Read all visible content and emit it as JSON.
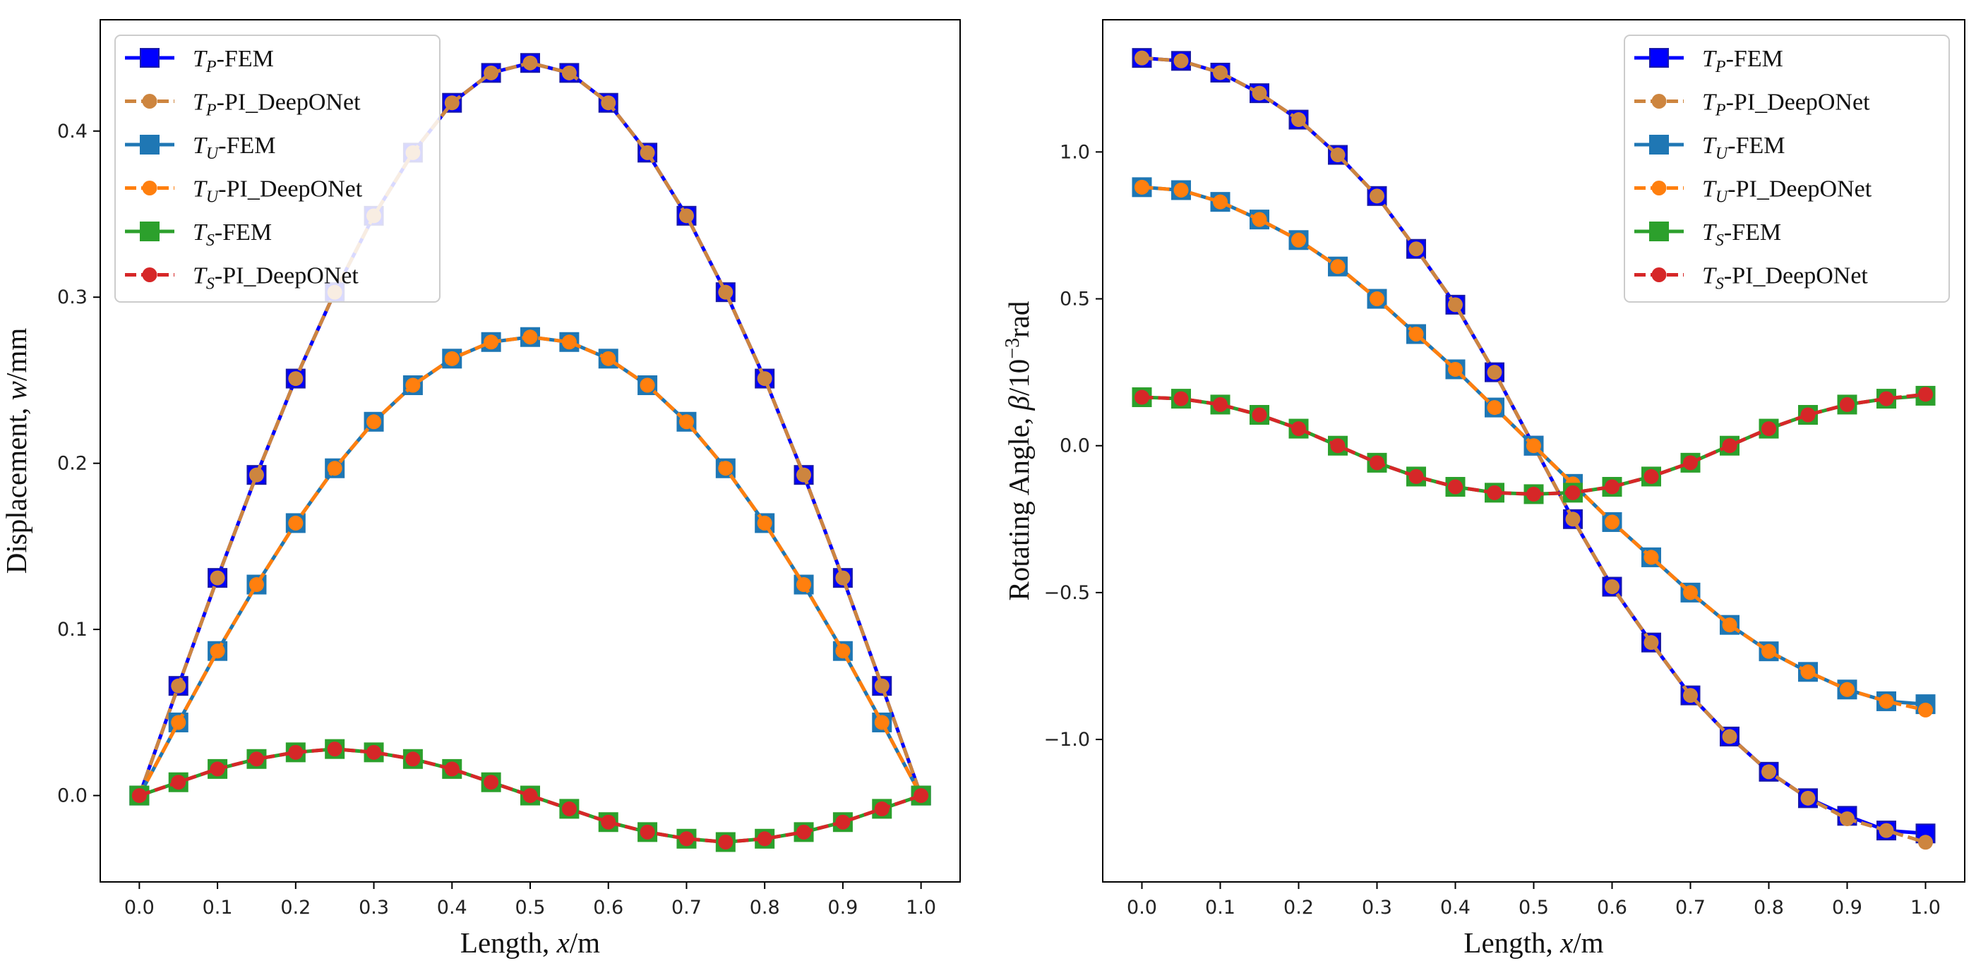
{
  "chart_data": [
    {
      "type": "line",
      "xlabel": {
        "prefix": "Length, ",
        "var": "x",
        "suffix": "/m"
      },
      "ylabel": {
        "prefix": "Displacement, ",
        "var": "w",
        "suffix": "/mm"
      },
      "xlim": [
        -0.05,
        1.05
      ],
      "ylim": [
        -0.052,
        0.467
      ],
      "x_ticks": [
        0.0,
        0.1,
        0.2,
        0.3,
        0.4,
        0.5,
        0.6,
        0.7,
        0.8,
        0.9,
        1.0
      ],
      "x_tick_labels": [
        "0.0",
        "0.1",
        "0.2",
        "0.3",
        "0.4",
        "0.5",
        "0.6",
        "0.7",
        "0.8",
        "0.9",
        "1.0"
      ],
      "y_ticks": [
        0.0,
        0.1,
        0.2,
        0.3,
        0.4
      ],
      "y_tick_labels": [
        "0.0",
        "0.1",
        "0.2",
        "0.3",
        "0.4"
      ],
      "legend_position": "upper-left",
      "x": [
        0.0,
        0.05,
        0.1,
        0.15,
        0.2,
        0.25,
        0.3,
        0.35,
        0.4,
        0.45,
        0.5,
        0.55,
        0.6,
        0.65,
        0.7,
        0.75,
        0.8,
        0.85,
        0.9,
        0.95,
        1.0
      ],
      "series": [
        {
          "name": "T_P-FEM",
          "sub": "P",
          "label_suffix": "-FEM",
          "style": "fem",
          "color": "#0000ff",
          "marker_edge": "#1a1aa8",
          "values": [
            0.0,
            0.066,
            0.131,
            0.193,
            0.251,
            0.303,
            0.349,
            0.387,
            0.417,
            0.435,
            0.441,
            0.435,
            0.417,
            0.387,
            0.349,
            0.303,
            0.251,
            0.193,
            0.131,
            0.066,
            0.0
          ]
        },
        {
          "name": "T_P-PI_DeepONet",
          "sub": "P",
          "label_suffix": "-PI_DeepONet",
          "style": "pinn",
          "color": "#cd853f",
          "values": [
            0.0,
            0.066,
            0.131,
            0.193,
            0.251,
            0.303,
            0.349,
            0.387,
            0.417,
            0.435,
            0.441,
            0.435,
            0.417,
            0.387,
            0.349,
            0.303,
            0.251,
            0.193,
            0.131,
            0.066,
            0.0
          ]
        },
        {
          "name": "T_U-FEM",
          "sub": "U",
          "label_suffix": "-FEM",
          "style": "fem",
          "color": "#1f77b4",
          "marker_edge": "#1f77b4",
          "values": [
            0.0,
            0.044,
            0.087,
            0.127,
            0.164,
            0.197,
            0.225,
            0.247,
            0.263,
            0.273,
            0.276,
            0.273,
            0.263,
            0.247,
            0.225,
            0.197,
            0.164,
            0.127,
            0.087,
            0.044,
            0.0
          ]
        },
        {
          "name": "T_U-PI_DeepONet",
          "sub": "U",
          "label_suffix": "-PI_DeepONet",
          "style": "pinn",
          "color": "#ff7f0e",
          "values": [
            0.0,
            0.044,
            0.087,
            0.127,
            0.164,
            0.197,
            0.225,
            0.247,
            0.263,
            0.273,
            0.276,
            0.273,
            0.263,
            0.247,
            0.225,
            0.197,
            0.164,
            0.127,
            0.087,
            0.044,
            0.0
          ]
        },
        {
          "name": "T_S-FEM",
          "sub": "S",
          "label_suffix": "-FEM",
          "style": "fem",
          "color": "#2ca02c",
          "marker_edge": "#2ca02c",
          "values": [
            0.0,
            0.008,
            0.016,
            0.022,
            0.026,
            0.028,
            0.026,
            0.022,
            0.016,
            0.008,
            0.0,
            -0.008,
            -0.016,
            -0.022,
            -0.026,
            -0.028,
            -0.026,
            -0.022,
            -0.016,
            -0.008,
            0.0
          ]
        },
        {
          "name": "T_S-PI_DeepONet",
          "sub": "S",
          "label_suffix": "-PI_DeepONet",
          "style": "pinn",
          "color": "#d62728",
          "values": [
            0.0,
            0.008,
            0.016,
            0.022,
            0.026,
            0.028,
            0.026,
            0.022,
            0.016,
            0.008,
            0.0,
            -0.008,
            -0.016,
            -0.022,
            -0.026,
            -0.028,
            -0.026,
            -0.022,
            -0.016,
            -0.008,
            0.0
          ]
        }
      ]
    },
    {
      "type": "line",
      "xlabel": {
        "prefix": "Length, ",
        "var": "x",
        "suffix": "/m"
      },
      "ylabel": {
        "prefix": "Rotating Angle, ",
        "var": "β",
        "suffix": "/10",
        "sup": "−3",
        "tail": "rad"
      },
      "xlim": [
        -0.05,
        1.05
      ],
      "ylim": [
        -1.485,
        1.45
      ],
      "x_ticks": [
        0.0,
        0.1,
        0.2,
        0.3,
        0.4,
        0.5,
        0.6,
        0.7,
        0.8,
        0.9,
        1.0
      ],
      "x_tick_labels": [
        "0.0",
        "0.1",
        "0.2",
        "0.3",
        "0.4",
        "0.5",
        "0.6",
        "0.7",
        "0.8",
        "0.9",
        "1.0"
      ],
      "y_ticks": [
        -1.0,
        -0.5,
        0.0,
        0.5,
        1.0
      ],
      "y_tick_labels": [
        "−1.0",
        "−0.5",
        "0.0",
        "0.5",
        "1.0"
      ],
      "legend_position": "upper-right",
      "x": [
        0.0,
        0.05,
        0.1,
        0.15,
        0.2,
        0.25,
        0.3,
        0.35,
        0.4,
        0.45,
        0.5,
        0.55,
        0.6,
        0.65,
        0.7,
        0.75,
        0.8,
        0.85,
        0.9,
        0.95,
        1.0
      ],
      "series": [
        {
          "name": "T_P-FEM",
          "sub": "P",
          "label_suffix": "-FEM",
          "style": "fem",
          "color": "#0000ff",
          "marker_edge": "#1a1aa8",
          "values": [
            1.32,
            1.31,
            1.27,
            1.2,
            1.11,
            0.99,
            0.85,
            0.67,
            0.48,
            0.25,
            0.0,
            -0.25,
            -0.48,
            -0.67,
            -0.85,
            -0.99,
            -1.11,
            -1.2,
            -1.26,
            -1.31,
            -1.32
          ]
        },
        {
          "name": "T_P-PI_DeepONet",
          "sub": "P",
          "label_suffix": "-PI_DeepONet",
          "style": "pinn",
          "color": "#cd853f",
          "values": [
            1.32,
            1.31,
            1.27,
            1.2,
            1.11,
            0.99,
            0.85,
            0.67,
            0.48,
            0.25,
            0.0,
            -0.25,
            -0.48,
            -0.67,
            -0.85,
            -0.99,
            -1.11,
            -1.2,
            -1.27,
            -1.31,
            -1.35
          ]
        },
        {
          "name": "T_U-FEM",
          "sub": "U",
          "label_suffix": "-FEM",
          "style": "fem",
          "color": "#1f77b4",
          "marker_edge": "#1f77b4",
          "values": [
            0.88,
            0.87,
            0.83,
            0.77,
            0.7,
            0.61,
            0.5,
            0.38,
            0.26,
            0.13,
            0.0,
            -0.13,
            -0.26,
            -0.38,
            -0.5,
            -0.61,
            -0.7,
            -0.77,
            -0.83,
            -0.87,
            -0.88
          ]
        },
        {
          "name": "T_U-PI_DeepONet",
          "sub": "U",
          "label_suffix": "-PI_DeepONet",
          "style": "pinn",
          "color": "#ff7f0e",
          "values": [
            0.88,
            0.87,
            0.83,
            0.77,
            0.7,
            0.61,
            0.5,
            0.38,
            0.26,
            0.13,
            0.0,
            -0.13,
            -0.26,
            -0.38,
            -0.5,
            -0.61,
            -0.7,
            -0.77,
            -0.83,
            -0.87,
            -0.9
          ]
        },
        {
          "name": "T_S-FEM",
          "sub": "S",
          "label_suffix": "-FEM",
          "style": "fem",
          "color": "#2ca02c",
          "marker_edge": "#2ca02c",
          "values": [
            0.165,
            0.16,
            0.14,
            0.105,
            0.058,
            0.0,
            -0.058,
            -0.105,
            -0.14,
            -0.16,
            -0.165,
            -0.16,
            -0.14,
            -0.105,
            -0.058,
            0.0,
            0.058,
            0.105,
            0.14,
            0.16,
            0.17
          ]
        },
        {
          "name": "T_S-PI_DeepONet",
          "sub": "S",
          "label_suffix": "-PI_DeepONet",
          "style": "pinn",
          "color": "#d62728",
          "values": [
            0.165,
            0.16,
            0.14,
            0.105,
            0.058,
            0.0,
            -0.058,
            -0.105,
            -0.14,
            -0.16,
            -0.165,
            -0.16,
            -0.14,
            -0.105,
            -0.058,
            0.0,
            0.058,
            0.105,
            0.14,
            0.16,
            0.175
          ]
        }
      ]
    }
  ]
}
